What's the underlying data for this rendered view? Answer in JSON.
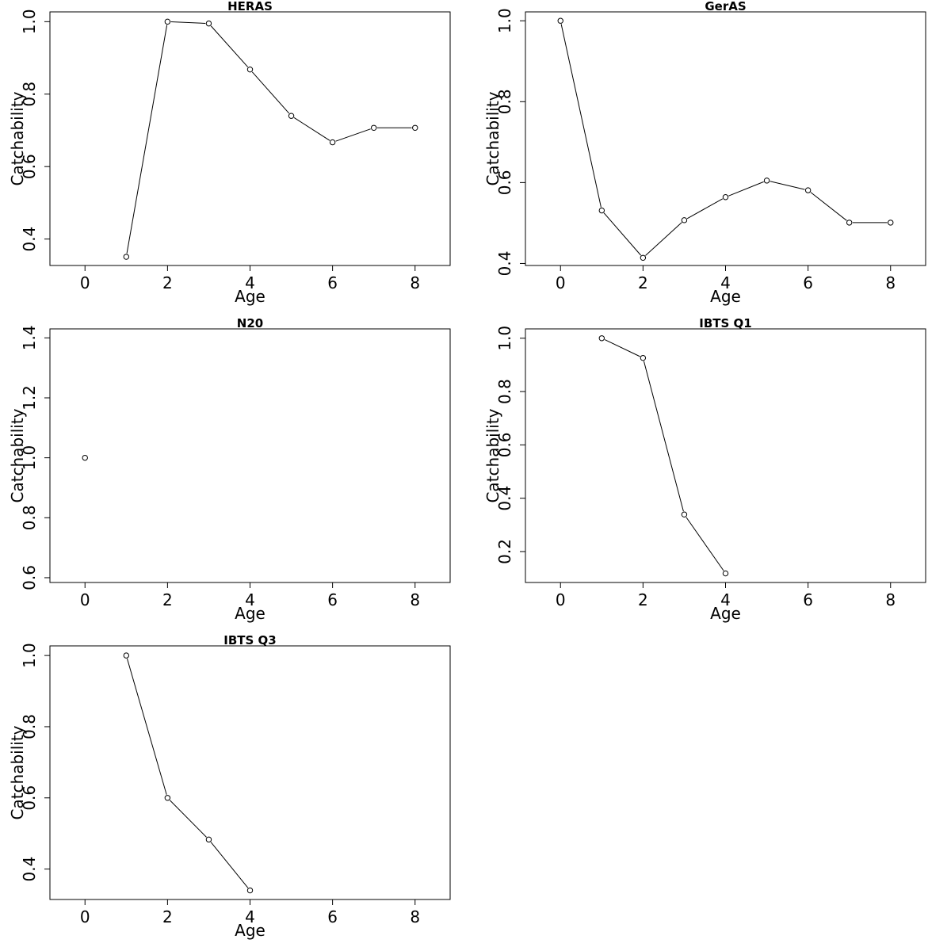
{
  "chart_data": [
    {
      "type": "line",
      "title": "HERAS",
      "xlabel": "Age",
      "ylabel": "Catchability",
      "xlim": [
        -0.85,
        8.85
      ],
      "ylim": [
        0.327,
        1.027
      ],
      "xticks": [
        0,
        2,
        4,
        6,
        8
      ],
      "yticks": [
        0.4,
        0.6,
        0.8,
        1.0
      ],
      "ytick_labels": [
        "0.4",
        "0.6",
        "0.8",
        "1.0"
      ],
      "grid": false,
      "x": [
        1,
        2,
        3,
        4,
        5,
        6,
        7,
        8
      ],
      "y": [
        0.351,
        1.0,
        0.995,
        0.868,
        0.74,
        0.667,
        0.707,
        0.707
      ]
    },
    {
      "type": "line",
      "title": "GerAS",
      "xlabel": "Age",
      "ylabel": "Catchability",
      "xlim": [
        -0.85,
        8.85
      ],
      "ylim": [
        0.395,
        1.022
      ],
      "xticks": [
        0,
        2,
        4,
        6,
        8
      ],
      "yticks": [
        0.4,
        0.6,
        0.8,
        1.0
      ],
      "ytick_labels": [
        "0.4",
        "0.6",
        "0.8",
        "1.0"
      ],
      "grid": false,
      "x": [
        0,
        1,
        2,
        3,
        4,
        5,
        6,
        7,
        8
      ],
      "y": [
        1.0,
        0.531,
        0.414,
        0.507,
        0.564,
        0.605,
        0.581,
        0.501,
        0.501
      ]
    },
    {
      "type": "scatter",
      "title": "N20",
      "xlabel": "Age",
      "ylabel": "Catchability",
      "xlim": [
        -0.85,
        8.85
      ],
      "ylim": [
        0.584,
        1.43
      ],
      "xticks": [
        0,
        2,
        4,
        6,
        8
      ],
      "yticks": [
        0.6,
        0.8,
        1.0,
        1.2,
        1.4
      ],
      "ytick_labels": [
        "0.6",
        "0.8",
        "1.0",
        "1.2",
        "1.4"
      ],
      "grid": false,
      "x": [
        0
      ],
      "y": [
        1.0
      ]
    },
    {
      "type": "line",
      "title": "IBTS Q1",
      "xlabel": "Age",
      "ylabel": "Catchability",
      "xlim": [
        -0.85,
        8.85
      ],
      "ylim": [
        0.084,
        1.035
      ],
      "xticks": [
        0,
        2,
        4,
        6,
        8
      ],
      "yticks": [
        0.2,
        0.4,
        0.6,
        0.8,
        1.0
      ],
      "ytick_labels": [
        "0.2",
        "0.4",
        "0.6",
        "0.8",
        "1.0"
      ],
      "grid": false,
      "x": [
        1,
        2,
        3,
        4
      ],
      "y": [
        1.0,
        0.926,
        0.339,
        0.118
      ]
    },
    {
      "type": "line",
      "title": "IBTS Q3",
      "xlabel": "Age",
      "ylabel": "Catchability",
      "xlim": [
        -0.85,
        8.85
      ],
      "ylim": [
        0.3145,
        1.027
      ],
      "xticks": [
        0,
        2,
        4,
        6,
        8
      ],
      "yticks": [
        0.4,
        0.6,
        0.8,
        1.0
      ],
      "ytick_labels": [
        "0.4",
        "0.6",
        "0.8",
        "1.0"
      ],
      "grid": false,
      "x": [
        1,
        2,
        3,
        4
      ],
      "y": [
        1.0,
        0.6,
        0.483,
        0.34
      ]
    }
  ]
}
